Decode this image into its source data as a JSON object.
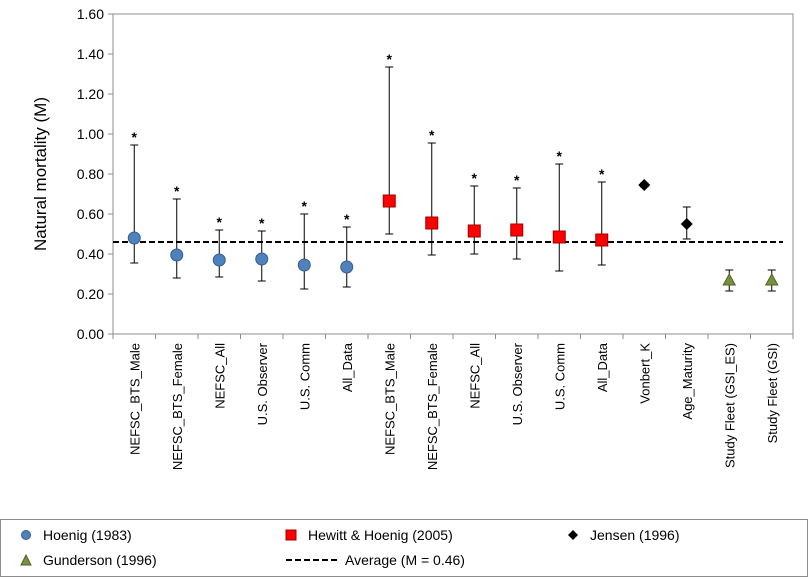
{
  "chart_data": {
    "type": "scatter",
    "ylabel": "Natural mortality (M)",
    "xlabel": "",
    "ylim": [
      0,
      1.6
    ],
    "ytick_values": [
      0,
      0.2,
      0.4,
      0.6,
      0.8,
      1.0,
      1.2,
      1.4,
      1.6
    ],
    "ytick_labels": [
      "0.00",
      "0.20",
      "0.40",
      "0.60",
      "0.80",
      "1.00",
      "1.20",
      "1.40",
      "1.60"
    ],
    "categories": [
      "NEFSC_BTS_Male",
      "NEFSC_BTS_Female",
      "NEFSC_All",
      "U.S. Observer",
      "U.S. Comm",
      "All_Data",
      "NEFSC_BTS_Male",
      "NEFSC_BTS_Female",
      "NEFSC_All",
      "U.S. Observer",
      "U.S. Comm",
      "All_Data",
      "Vonbert_K",
      "Age_Maturity",
      "Study Fleet (GSI_ES)",
      "Study Fleet (GSI)"
    ],
    "series": [
      {
        "name": "Hoenig (1983)",
        "marker": "circle",
        "color": "#4f81bd",
        "x": [
          0,
          1,
          2,
          3,
          4,
          5
        ],
        "values": [
          0.48,
          0.395,
          0.37,
          0.375,
          0.345,
          0.335
        ],
        "lower": [
          0.355,
          0.28,
          0.285,
          0.265,
          0.225,
          0.235
        ],
        "upper": [
          0.945,
          0.675,
          0.52,
          0.515,
          0.6,
          0.535
        ],
        "asterisk": [
          true,
          true,
          true,
          true,
          true,
          true
        ]
      },
      {
        "name": "Hewitt & Hoenig (2005)",
        "marker": "square",
        "color": "#ff0000",
        "x": [
          6,
          7,
          8,
          9,
          10,
          11
        ],
        "values": [
          0.665,
          0.555,
          0.515,
          0.52,
          0.485,
          0.47
        ],
        "lower": [
          0.5,
          0.395,
          0.4,
          0.375,
          0.315,
          0.345
        ],
        "upper": [
          1.335,
          0.955,
          0.74,
          0.73,
          0.85,
          0.76
        ],
        "asterisk": [
          true,
          true,
          true,
          true,
          true,
          true
        ]
      },
      {
        "name": "Jensen (1996)",
        "marker": "diamond",
        "color": "#000000",
        "x": [
          12,
          13
        ],
        "values": [
          0.745,
          0.55
        ],
        "lower": [
          0.735,
          0.475
        ],
        "upper": [
          0.755,
          0.635
        ],
        "asterisk": [
          false,
          false
        ]
      },
      {
        "name": "Gunderson (1996)",
        "marker": "triangle",
        "color": "#76923c",
        "x": [
          14,
          15
        ],
        "values": [
          0.27,
          0.27
        ],
        "lower": [
          0.215,
          0.215
        ],
        "upper": [
          0.32,
          0.32
        ],
        "asterisk": [
          false,
          false
        ]
      }
    ],
    "reference_line": {
      "name": "Average (M = 0.46)",
      "value": 0.46,
      "style": "dashed",
      "color": "#000000"
    },
    "annotation_symbol": "*",
    "grid": false,
    "legend_position": "bottom"
  },
  "legend": {
    "hoenig": "Hoenig (1983)",
    "hewitt": "Hewitt & Hoenig (2005)",
    "jensen": "Jensen (1996)",
    "gunderson": "Gunderson (1996)",
    "average": "Average (M = 0.46)"
  }
}
